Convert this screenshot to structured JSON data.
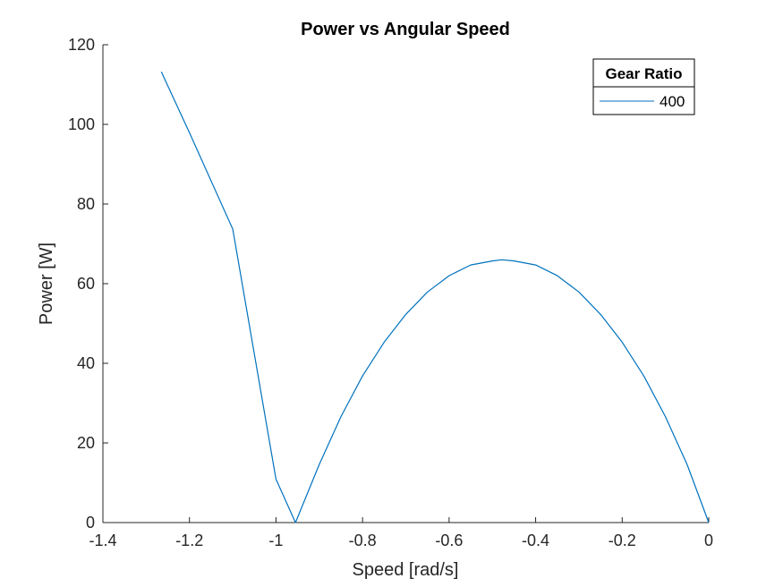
{
  "chart_data": {
    "type": "line",
    "title": "Power vs Angular Speed",
    "xlabel": "Speed [rad/s]",
    "ylabel": "Power [W]",
    "xlim": [
      -1.4,
      0
    ],
    "ylim": [
      0,
      120
    ],
    "xticks": [
      -1.4,
      -1.2,
      -1,
      -0.8,
      -0.6,
      -0.4,
      -0.2,
      0
    ],
    "xtick_labels": [
      "-1.4",
      "-1.2",
      "-1",
      "-0.8",
      "-0.6",
      "-0.4",
      "-0.2",
      "0"
    ],
    "yticks": [
      0,
      20,
      40,
      60,
      80,
      100,
      120
    ],
    "ytick_labels": [
      "0",
      "20",
      "40",
      "60",
      "80",
      "100",
      "120"
    ],
    "grid": false,
    "legend": {
      "title": "Gear Ratio",
      "placement": "top-right"
    },
    "series": [
      {
        "name": "400",
        "color": "#0072BD",
        "x": [
          -1.265,
          -1.2,
          -1.1,
          -1.0,
          -0.955,
          -0.9,
          -0.85,
          -0.8,
          -0.75,
          -0.7,
          -0.65,
          -0.6,
          -0.55,
          -0.5,
          -0.478,
          -0.45,
          -0.4,
          -0.35,
          -0.3,
          -0.25,
          -0.2,
          -0.15,
          -0.1,
          -0.05,
          0
        ],
        "y": [
          113.2,
          97.9,
          73.7,
          10.9,
          0,
          14.6,
          26.6,
          36.8,
          45.3,
          52.3,
          57.9,
          62.0,
          64.7,
          65.7,
          66.0,
          65.7,
          64.7,
          62.0,
          57.9,
          52.3,
          45.3,
          36.8,
          26.6,
          14.6,
          0
        ]
      }
    ]
  }
}
